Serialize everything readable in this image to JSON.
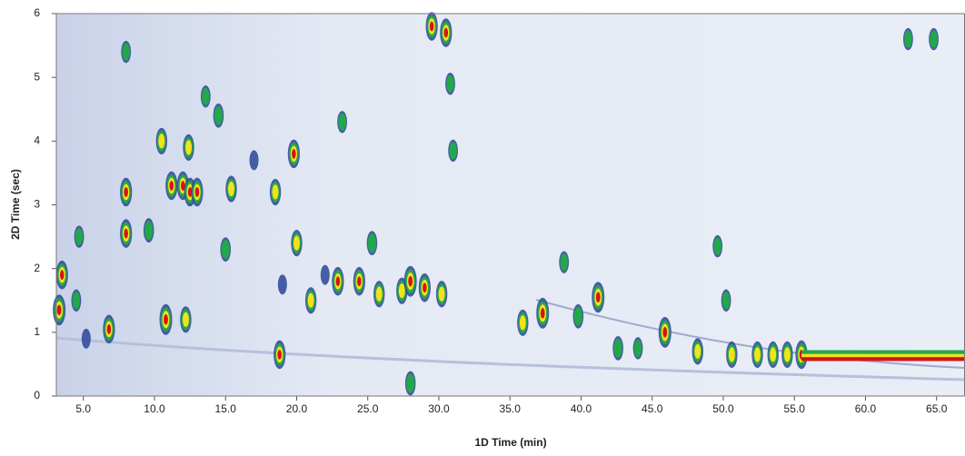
{
  "chart_data": {
    "type": "scatter",
    "xlabel": "1D Time (min)",
    "ylabel": "2D Time (sec)",
    "xlim": [
      3.1,
      67
    ],
    "ylim": [
      0,
      6
    ],
    "xticks": [
      {
        "value": 5,
        "label": "5.0"
      },
      {
        "value": 10,
        "label": "10.0"
      },
      {
        "value": 15,
        "label": "15.0"
      },
      {
        "value": 20,
        "label": "20.0"
      },
      {
        "value": 25,
        "label": "25.0"
      },
      {
        "value": 30,
        "label": "30.0"
      },
      {
        "value": 35,
        "label": "35.0"
      },
      {
        "value": 40,
        "label": "40.0"
      },
      {
        "value": 45,
        "label": "45.0"
      },
      {
        "value": 50,
        "label": "50.0"
      },
      {
        "value": 55,
        "label": "55.0"
      },
      {
        "value": 60,
        "label": "60.0"
      },
      {
        "value": 65,
        "label": "65.0"
      }
    ],
    "yticks": [
      0,
      1,
      2,
      3,
      4,
      5,
      6
    ],
    "colorscale": [
      "#2a4596",
      "#22a84a",
      "#f2e21c",
      "#d41414"
    ],
    "x": [
      3.3,
      3.5,
      4.5,
      4.7,
      5.2,
      6.8,
      8.0,
      8.0,
      8.0,
      9.6,
      10.5,
      10.8,
      11.2,
      12.0,
      12.4,
      12.5,
      12.2,
      13.0,
      13.6,
      14.5,
      15.0,
      15.4,
      17.0,
      18.5,
      19.0,
      18.8,
      19.8,
      20.0,
      21.0,
      22.0,
      23.2,
      22.9,
      24.4,
      25.3,
      25.8,
      27.4,
      28.0,
      29.0,
      28.0,
      29.5,
      30.5,
      30.2,
      30.8,
      31.0,
      35.9,
      37.3,
      38.8,
      39.8,
      41.2,
      42.6,
      44.0,
      45.9,
      48.2,
      49.6,
      50.2,
      50.6,
      52.4,
      53.5,
      54.5,
      55.5,
      63.0,
      64.8
    ],
    "values": [
      1.35,
      1.9,
      1.5,
      2.5,
      0.9,
      1.05,
      3.2,
      2.55,
      5.4,
      2.6,
      4.0,
      1.2,
      3.3,
      3.3,
      3.9,
      3.2,
      1.2,
      3.2,
      4.7,
      4.4,
      2.3,
      3.25,
      3.7,
      3.2,
      1.75,
      0.65,
      3.8,
      2.4,
      1.5,
      1.9,
      4.3,
      1.8,
      1.8,
      2.4,
      1.6,
      1.65,
      1.8,
      1.7,
      0.2,
      5.8,
      5.7,
      1.6,
      4.9,
      3.85,
      1.15,
      1.3,
      2.1,
      1.25,
      1.55,
      0.75,
      0.75,
      1.0,
      0.7,
      2.35,
      1.5,
      0.65,
      0.65,
      0.65,
      0.65,
      0.65,
      5.6,
      5.6
    ],
    "intensity": [
      1.0,
      0.9,
      0.6,
      0.6,
      0.5,
      0.9,
      0.9,
      0.9,
      0.6,
      0.7,
      0.8,
      1.0,
      0.9,
      0.9,
      0.8,
      0.9,
      0.8,
      0.9,
      0.6,
      0.7,
      0.7,
      0.8,
      0.5,
      0.8,
      0.5,
      0.9,
      0.9,
      0.8,
      0.8,
      0.5,
      0.6,
      0.9,
      0.9,
      0.7,
      0.8,
      0.8,
      1.0,
      0.9,
      0.7,
      0.9,
      0.9,
      0.8,
      0.6,
      0.6,
      0.8,
      1.0,
      0.6,
      0.7,
      1.0,
      0.7,
      0.6,
      1.0,
      0.8,
      0.6,
      0.6,
      0.8,
      0.8,
      0.8,
      0.8,
      0.9,
      0.6,
      0.6
    ],
    "band_x": [
      55.5,
      67
    ],
    "band_y": [
      0.55,
      0.72
    ]
  }
}
